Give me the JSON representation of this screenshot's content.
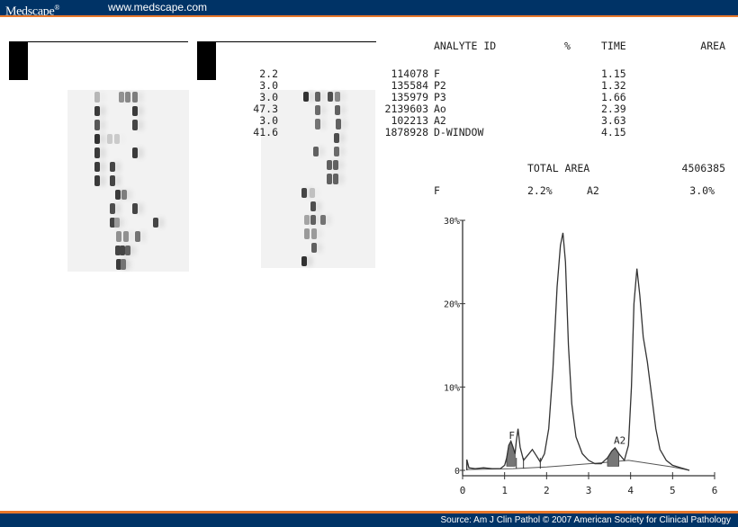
{
  "header": {
    "brand": "Medscape",
    "brand_mark": "®",
    "site_url": "www.medscape.com",
    "colors": {
      "bar": "#003366",
      "accent_line": "#e8772a"
    }
  },
  "footer": {
    "source": "Source: Am J Clin Pathol © 2007 American Society for Clinical Pathology"
  },
  "panels": [
    {
      "id": "A",
      "label": ""
    },
    {
      "id": "B",
      "label": ""
    }
  ],
  "gels": [
    {
      "name": "gel-left",
      "lanes": [
        {
          "bands": [
            [
              30,
              0.25
            ],
            [
              57,
              0.45
            ],
            [
              64,
              0.5
            ],
            [
              72,
              0.55
            ]
          ]
        },
        {
          "bands": [
            [
              30,
              0.9
            ],
            [
              72,
              0.9
            ]
          ]
        },
        {
          "bands": [
            [
              30,
              0.75
            ],
            [
              72,
              0.85
            ]
          ]
        },
        {
          "bands": [
            [
              30,
              0.95
            ],
            [
              44,
              0.15
            ],
            [
              52,
              0.15
            ]
          ]
        },
        {
          "bands": [
            [
              30,
              0.9
            ],
            [
              72,
              0.9
            ]
          ]
        },
        {
          "bands": [
            [
              30,
              0.9
            ],
            [
              47,
              0.85
            ]
          ]
        },
        {
          "bands": [
            [
              30,
              0.9
            ],
            [
              47,
              0.85
            ]
          ]
        },
        {
          "bands": [
            [
              53,
              0.9
            ],
            [
              60,
              0.55
            ]
          ]
        },
        {
          "bands": [
            [
              47,
              0.8
            ],
            [
              72,
              0.85
            ]
          ]
        },
        {
          "bands": [
            [
              47,
              0.85
            ],
            [
              52,
              0.4
            ],
            [
              95,
              0.85
            ]
          ]
        },
        {
          "bands": [
            [
              54,
              0.45
            ],
            [
              62,
              0.45
            ],
            [
              75,
              0.6
            ]
          ]
        },
        {
          "bands": [
            [
              53,
              0.85
            ],
            [
              58,
              0.85
            ],
            [
              64,
              0.7
            ]
          ]
        },
        {
          "bands": [
            [
              54,
              0.9
            ],
            [
              59,
              0.6
            ]
          ]
        }
      ]
    },
    {
      "name": "gel-right",
      "lanes": [
        {
          "bands": [
            [
              47,
              0.95
            ],
            [
              60,
              0.7
            ],
            [
              74,
              0.8
            ],
            [
              82,
              0.5
            ]
          ]
        },
        {
          "bands": [
            [
              60,
              0.65
            ],
            [
              82,
              0.7
            ]
          ]
        },
        {
          "bands": [
            [
              60,
              0.6
            ],
            [
              83,
              0.7
            ]
          ]
        },
        {
          "bands": [
            [
              81,
              0.8
            ]
          ]
        },
        {
          "bands": [
            [
              58,
              0.7
            ],
            [
              81,
              0.65
            ]
          ]
        },
        {
          "bands": [
            [
              73,
              0.7
            ],
            [
              80,
              0.7
            ]
          ]
        },
        {
          "bands": [
            [
              73,
              0.7
            ],
            [
              80,
              0.7
            ]
          ]
        },
        {
          "bands": [
            [
              45,
              0.85
            ],
            [
              54,
              0.2
            ]
          ]
        },
        {
          "bands": [
            [
              55,
              0.8
            ]
          ]
        },
        {
          "bands": [
            [
              48,
              0.35
            ],
            [
              55,
              0.7
            ],
            [
              66,
              0.6
            ]
          ]
        },
        {
          "bands": [
            [
              48,
              0.4
            ],
            [
              56,
              0.4
            ]
          ]
        },
        {
          "bands": [
            [
              56,
              0.7
            ]
          ]
        },
        {
          "bands": [
            [
              45,
              0.95
            ]
          ]
        }
      ]
    }
  ],
  "report": {
    "headers": {
      "analyte": "ANALYTE ID",
      "percent": "%",
      "time": "TIME",
      "area": "AREA"
    },
    "rows": [
      {
        "analyte": "F",
        "percent": "2.2",
        "time": "1.15",
        "area": "114078"
      },
      {
        "analyte": "P2",
        "percent": "3.0",
        "time": "1.32",
        "area": "135584"
      },
      {
        "analyte": "P3",
        "percent": "3.0",
        "time": "1.66",
        "area": "135979"
      },
      {
        "analyte": "Ao",
        "percent": "47.3",
        "time": "2.39",
        "area": "2139603"
      },
      {
        "analyte": "A2",
        "percent": "3.0",
        "time": "3.63",
        "area": "102213"
      },
      {
        "analyte": "D-WINDOW",
        "percent": "41.6",
        "time": "4.15",
        "area": "1878928"
      }
    ],
    "total_label": "TOTAL AREA",
    "total_value": "4506385",
    "summary": {
      "f_label": "F",
      "f_value": "2.2%",
      "a2_label": "A2",
      "a2_value": "3.0%"
    }
  },
  "chart_data": {
    "type": "line",
    "title": "",
    "xlabel": "",
    "ylabel": "",
    "x_ticks": [
      "0",
      "1",
      "2",
      "3",
      "4",
      "5",
      "6"
    ],
    "y_ticks": [
      "0",
      "10%",
      "20%",
      "30%"
    ],
    "xlim": [
      0,
      6
    ],
    "ylim": [
      0,
      30
    ],
    "grid": false,
    "annotations": [
      {
        "text": "F",
        "x": 1.1,
        "y": 3.8
      },
      {
        "text": "A2",
        "x": 3.6,
        "y": 3.2
      }
    ],
    "peaks": [
      {
        "name": "F",
        "x": 1.15,
        "height": 3.5,
        "shaded": true
      },
      {
        "name": "P2",
        "x": 1.32,
        "height": 5.0,
        "shaded": false
      },
      {
        "name": "P3",
        "x": 1.66,
        "height": 2.5,
        "shaded": false
      },
      {
        "name": "Ao",
        "x": 2.39,
        "height": 28.5,
        "shaded": false
      },
      {
        "name": "A2",
        "x": 3.63,
        "height": 2.7,
        "shaded": true
      },
      {
        "name": "D-WINDOW",
        "x": 4.15,
        "height": 24.2,
        "shaded": false
      }
    ],
    "series": [
      {
        "name": "chromatogram",
        "x": [
          0.1,
          0.1,
          0.15,
          0.3,
          0.5,
          0.7,
          0.9,
          1.0,
          1.05,
          1.1,
          1.15,
          1.2,
          1.25,
          1.28,
          1.32,
          1.37,
          1.45,
          1.55,
          1.66,
          1.75,
          1.85,
          1.95,
          2.05,
          2.15,
          2.25,
          2.33,
          2.39,
          2.45,
          2.52,
          2.6,
          2.7,
          2.85,
          3.0,
          3.15,
          3.3,
          3.45,
          3.55,
          3.63,
          3.72,
          3.85,
          3.95,
          4.02,
          4.08,
          4.15,
          4.22,
          4.3,
          4.4,
          4.5,
          4.6,
          4.7,
          4.85,
          5.0,
          5.2,
          5.4
        ],
        "y": [
          0,
          1.3,
          0.3,
          0.2,
          0.3,
          0.2,
          0.2,
          0.6,
          1.5,
          3.0,
          3.5,
          2.8,
          2.0,
          3.5,
          5.0,
          2.8,
          1.2,
          1.8,
          2.5,
          1.8,
          1.0,
          2.0,
          5.0,
          12.0,
          22.0,
          27.0,
          28.5,
          25.0,
          15.0,
          8.0,
          4.0,
          2.0,
          1.2,
          0.8,
          0.8,
          1.5,
          2.3,
          2.7,
          2.0,
          1.2,
          3.0,
          10.0,
          20.0,
          24.2,
          21.0,
          16.0,
          13.0,
          9.0,
          5.0,
          2.5,
          1.2,
          0.6,
          0.3,
          0.0
        ]
      }
    ]
  }
}
